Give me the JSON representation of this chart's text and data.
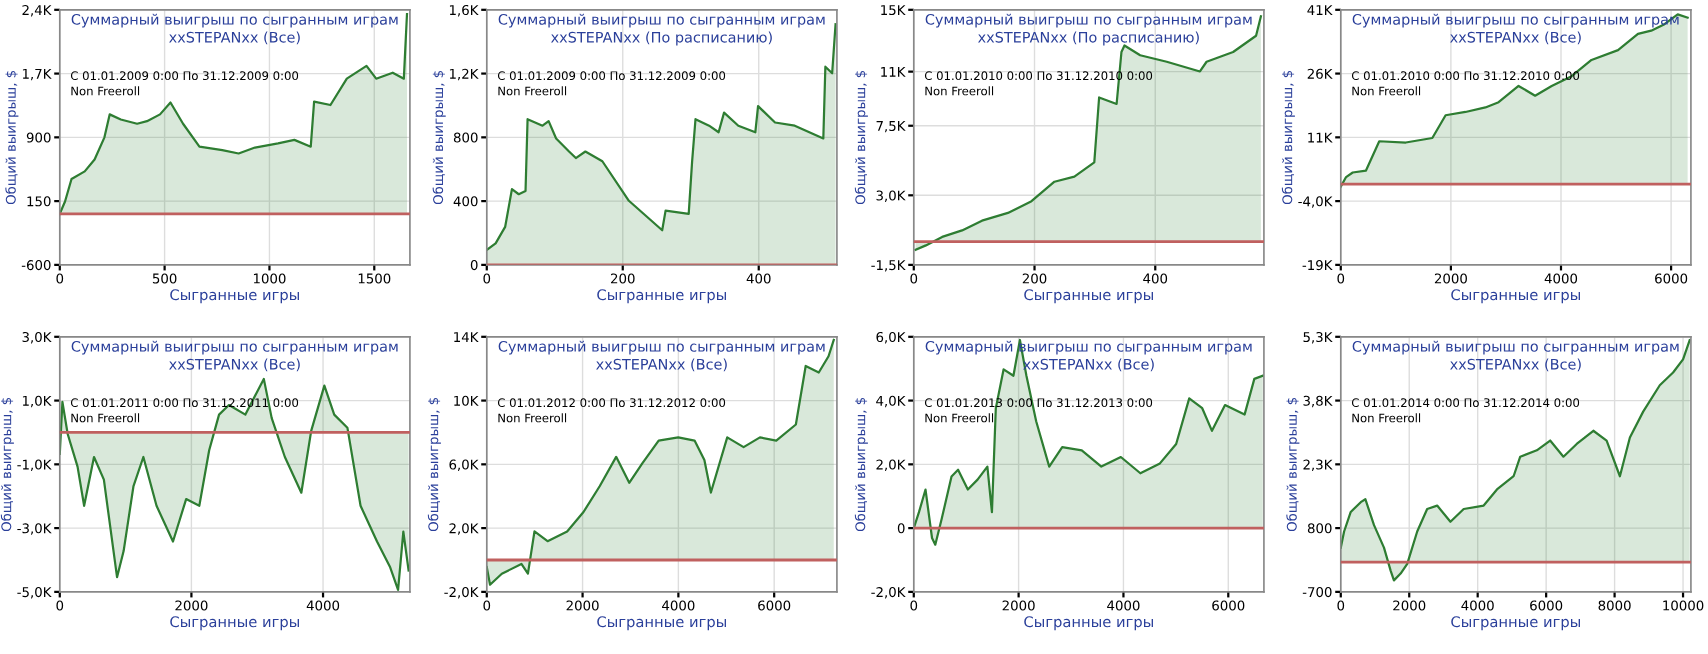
{
  "chart_data": [
    {
      "type": "area",
      "title": "Суммарный выигрыш по сыгранным играм",
      "subtitle": "xxSTEPANxx (Все)",
      "annotations": [
        "С 01.01.2009 0:00 По 31.12.2009 0:00",
        "Non Freeroll"
      ],
      "xlabel": "Сыгранные игры",
      "ylabel": "Общий выигрыш, $",
      "grid": true,
      "xlim": [
        0,
        1670
      ],
      "xticks": [
        0,
        500,
        1000,
        1500
      ],
      "ylim": [
        -600,
        2400
      ],
      "yticks": [
        -600,
        150,
        900,
        {
          "value": 1650,
          "label": "1,7K"
        },
        {
          "value": 2400,
          "label": "2,4K"
        }
      ],
      "ref_lines": [
        {
          "axis": "y",
          "value": 0,
          "color": "#c0605f"
        }
      ],
      "series": [
        {
          "color": "#2e7d32",
          "x": [
            0,
            25,
            56,
            119,
            166,
            213,
            238,
            291,
            369,
            416,
            478,
            528,
            588,
            666,
            775,
            853,
            931,
            1041,
            1119,
            1197,
            1213,
            1291,
            1369,
            1463,
            1509,
            1588,
            1641,
            1656
          ],
          "values": [
            0,
            145,
            410,
            500,
            640,
            900,
            1170,
            1110,
            1060,
            1090,
            1170,
            1310,
            1060,
            790,
            750,
            710,
            780,
            830,
            870,
            790,
            1320,
            1280,
            1590,
            1740,
            1590,
            1660,
            1590,
            2350
          ]
        }
      ]
    },
    {
      "type": "area",
      "title": "Суммарный выигрыш по сыгранным играм",
      "subtitle": "xxSTEPANxx (По расписанию)",
      "annotations": [
        "С 01.01.2009 0:00 По 31.12.2009 0:00",
        "Non Freeroll"
      ],
      "xlabel": "Сыгранные игры",
      "ylabel": "Общий выигрыш, $",
      "grid": true,
      "xlim": [
        0,
        515
      ],
      "xticks": [
        0,
        200,
        400
      ],
      "ylim": [
        0,
        1600
      ],
      "yticks": [
        0,
        400,
        800,
        {
          "value": 1200,
          "label": "1,2K"
        },
        {
          "value": 1600,
          "label": "1,6K"
        }
      ],
      "ref_lines": [
        {
          "axis": "y",
          "value": 0,
          "color": "#c0605f"
        }
      ],
      "series": [
        {
          "color": "#2e7d32",
          "x": [
            0,
            13,
            27,
            37,
            47,
            57,
            60,
            82,
            91,
            102,
            121,
            131,
            145,
            170,
            209,
            258,
            263,
            297,
            302,
            307,
            327,
            341,
            349,
            370,
            395,
            399,
            424,
            453,
            495,
            498,
            508,
            513
          ],
          "values": [
            94,
            135,
            238,
            475,
            443,
            463,
            914,
            873,
            902,
            793,
            711,
            670,
            711,
            650,
            402,
            217,
            340,
            320,
            648,
            914,
            873,
            832,
            955,
            873,
            832,
            996,
            893,
            873,
            793,
            1243,
            1202,
            1510
          ]
        }
      ]
    },
    {
      "type": "area",
      "title": "Суммарный выигрыш по сыгранным играм",
      "subtitle": "xxSTEPANxx (По расписанию)",
      "annotations": [
        "С 01.01.2010 0:00 По 31.12.2010 0:00",
        "Non Freeroll"
      ],
      "xlabel": "Сыгранные игры",
      "ylabel": "Общий выигрыш, $",
      "grid": true,
      "xlim": [
        0,
        580
      ],
      "xticks": [
        0,
        200,
        400
      ],
      "ylim": [
        -1500,
        15000
      ],
      "yticks": [
        {
          "value": -1500,
          "label": "-1,5K"
        },
        {
          "value": 3000,
          "label": "3,0K"
        },
        {
          "value": 7500,
          "label": "7,5K"
        },
        {
          "value": 11000,
          "label": "11K"
        },
        {
          "value": 15000,
          "label": "15K"
        }
      ],
      "ref_lines": [
        {
          "axis": "y",
          "value": 0,
          "color": "#c0605f"
        }
      ],
      "series": [
        {
          "color": "#2e7d32",
          "x": [
            3,
            20,
            47,
            80,
            113,
            156,
            195,
            233,
            266,
            299,
            307,
            336,
            344,
            349,
            375,
            419,
            474,
            485,
            529,
            567,
            575
          ],
          "values": [
            -530,
            -240,
            310,
            730,
            1360,
            1860,
            2620,
            3880,
            4210,
            5130,
            9330,
            8910,
            12270,
            12690,
            12060,
            11640,
            11010,
            11640,
            12270,
            13320,
            14580
          ]
        }
      ]
    },
    {
      "type": "area",
      "title": "Суммарный выигрыш по сыгранным играм",
      "subtitle": "xxSTEPANxx (Все)",
      "annotations": [
        "С 01.01.2010 0:00 По 31.12.2010 0:00",
        "Non Freeroll"
      ],
      "xlabel": "Сыгранные игры",
      "ylabel": "Общий выигрыш, $",
      "grid": true,
      "xlim": [
        0,
        6360
      ],
      "xticks": [
        0,
        2000,
        4000,
        6000
      ],
      "ylim": [
        -19000,
        41000
      ],
      "yticks": [
        {
          "value": -19000,
          "label": "-19K"
        },
        {
          "value": -4000,
          "label": "-4,0K"
        },
        {
          "value": 11000,
          "label": "11K"
        },
        {
          "value": 26000,
          "label": "26K"
        },
        {
          "value": 41000,
          "label": "41K"
        }
      ],
      "ref_lines": [
        {
          "axis": "y",
          "value": 0,
          "color": "#c0605f"
        }
      ],
      "series": [
        {
          "color": "#2e7d32",
          "x": [
            0,
            96,
            217,
            458,
            699,
            1181,
            1663,
            1904,
            2265,
            2627,
            2867,
            3229,
            3530,
            3831,
            4193,
            4554,
            5036,
            5398,
            5639,
            5880,
            6120,
            6300
          ],
          "values": [
            -600,
            1660,
            2730,
            3190,
            10080,
            9780,
            10850,
            16200,
            16970,
            18040,
            19270,
            23090,
            20800,
            23090,
            25390,
            29210,
            31510,
            35340,
            36100,
            37630,
            39930,
            39160
          ]
        }
      ]
    },
    {
      "type": "area",
      "title": "Суммарный выигрыш по сыгранным играм",
      "subtitle": "xxSTEPANxx (Все)",
      "annotations": [
        "С 01.01.2011 0:00 По 31.12.2011 0:00",
        "Non Freeroll"
      ],
      "xlabel": "Сыгранные игры",
      "ylabel": "Общий выигрыш, $",
      "grid": true,
      "xlim": [
        0,
        5320
      ],
      "xticks": [
        0,
        2000,
        4000
      ],
      "ylim": [
        -5000,
        3000
      ],
      "yticks": [
        {
          "value": -5000,
          "label": "-5,0K"
        },
        {
          "value": -3000,
          "label": "-3,0K"
        },
        {
          "value": -1000,
          "label": "-1,0K"
        },
        {
          "value": 1000,
          "label": "1,0K"
        },
        {
          "value": 3000,
          "label": "3,0K"
        }
      ],
      "ref_lines": [
        {
          "axis": "y",
          "value": 0,
          "color": "#c0605f"
        }
      ],
      "series": [
        {
          "color": "#2e7d32",
          "x": [
            0,
            40,
            120,
            270,
            370,
            520,
            670,
            870,
            970,
            1120,
            1270,
            1470,
            1720,
            1920,
            2120,
            2270,
            2420,
            2570,
            2820,
            3100,
            3220,
            3420,
            3670,
            3820,
            4020,
            4170,
            4370,
            4570,
            4820,
            5020,
            5140,
            5220,
            5300
          ],
          "values": [
            -670,
            960,
            -50,
            -1070,
            -2300,
            -770,
            -1480,
            -4540,
            -3720,
            -1680,
            -770,
            -2300,
            -3420,
            -2090,
            -2300,
            -560,
            560,
            860,
            560,
            1680,
            450,
            -770,
            -1890,
            50,
            1470,
            560,
            150,
            -2300,
            -3420,
            -4230,
            -4940,
            -3110,
            -4330
          ]
        }
      ]
    },
    {
      "type": "area",
      "title": "Суммарный выигрыш по сыгранным играм",
      "subtitle": "xxSTEPANxx (Все)",
      "annotations": [
        "С 01.01.2012 0:00 По 31.12.2012 0:00",
        "Non Freeroll"
      ],
      "xlabel": "Сыгранные игры",
      "ylabel": "Общий выигрыш, $",
      "grid": true,
      "xlim": [
        0,
        7310
      ],
      "xticks": [
        0,
        2000,
        4000,
        6000
      ],
      "ylim": [
        -2000,
        14000
      ],
      "yticks": [
        {
          "value": -2000,
          "label": "-2,0K"
        },
        {
          "value": 2000,
          "label": "2,0K"
        },
        {
          "value": 6000,
          "label": "6,0K"
        },
        {
          "value": 10000,
          "label": "10K"
        },
        {
          "value": 14000,
          "label": "14K"
        }
      ],
      "ref_lines": [
        {
          "axis": "y",
          "value": 0,
          "color": "#c0605f"
        }
      ],
      "series": [
        {
          "color": "#2e7d32",
          "x": [
            0,
            68,
            314,
            723,
            859,
            996,
            1269,
            1678,
            2019,
            2360,
            2701,
            2974,
            3247,
            3588,
            3997,
            4338,
            4543,
            4679,
            5020,
            5362,
            5703,
            6044,
            6453,
            6658,
            6931,
            7135,
            7244
          ],
          "values": [
            -450,
            -1550,
            -860,
            -250,
            -860,
            1790,
            1180,
            1790,
            3010,
            4640,
            6470,
            4840,
            6060,
            7490,
            7690,
            7490,
            6270,
            4230,
            7690,
            7080,
            7690,
            7490,
            8500,
            12170,
            11760,
            12780,
            13800
          ]
        }
      ]
    },
    {
      "type": "area",
      "title": "Суммарный выигрыш по сыгранным играм",
      "subtitle": "xxSTEPANxx (Все)",
      "annotations": [
        "С 01.01.2013 0:00 По 31.12.2013 0:00",
        "Non Freeroll"
      ],
      "xlabel": "Сыгранные игры",
      "ylabel": "Общий выигрыш, $",
      "grid": true,
      "xlim": [
        0,
        6680
      ],
      "xticks": [
        0,
        2000,
        4000,
        6000
      ],
      "ylim": [
        -2000,
        6000
      ],
      "yticks": [
        {
          "value": -2000,
          "label": "-2,0K"
        },
        0,
        {
          "value": 2000,
          "label": "2,0K"
        },
        {
          "value": 4000,
          "label": "4,0K"
        },
        {
          "value": 6000,
          "label": "6,0K"
        }
      ],
      "ref_lines": [
        {
          "axis": "y",
          "value": 0,
          "color": "#c0605f"
        }
      ],
      "series": [
        {
          "color": "#2e7d32",
          "x": [
            0,
            99,
            224,
            348,
            410,
            534,
            720,
            845,
            1031,
            1217,
            1404,
            1491,
            1565,
            1714,
            1901,
            2025,
            2149,
            2335,
            2584,
            2832,
            3205,
            3578,
            3950,
            4323,
            4696,
            5006,
            5255,
            5503,
            5689,
            5938,
            6311,
            6497,
            6658
          ],
          "values": [
            0,
            500,
            1210,
            -310,
            -520,
            300,
            1620,
            1830,
            1210,
            1520,
            1930,
            500,
            3760,
            4980,
            4780,
            5900,
            4780,
            3350,
            1930,
            2540,
            2440,
            1930,
            2230,
            1720,
            2030,
            2640,
            4070,
            3760,
            3050,
            3860,
            3560,
            4680,
            4780
          ]
        }
      ]
    },
    {
      "type": "area",
      "title": "Суммарный выигрыш по сыгранным играм",
      "subtitle": "xxSTEPANxx (Все)",
      "annotations": [
        "С 01.01.2014 0:00 По 31.12.2014 0:00",
        "Non Freeroll"
      ],
      "xlabel": "Сыгранные игры",
      "ylabel": "Общий выигрыш, $",
      "grid": true,
      "xlim": [
        0,
        10230
      ],
      "xticks": [
        0,
        2000,
        4000,
        6000,
        8000,
        10000
      ],
      "ylim": [
        -700,
        5300
      ],
      "yticks": [
        -700,
        800,
        {
          "value": 2300,
          "label": "2,3K"
        },
        {
          "value": 3800,
          "label": "3,8K"
        },
        {
          "value": 5300,
          "label": "5,3K"
        }
      ],
      "ref_lines": [
        {
          "axis": "y",
          "value": 0,
          "color": "#c0605f"
        }
      ],
      "series": [
        {
          "color": "#2e7d32",
          "x": [
            0,
            97,
            291,
            583,
            718,
            971,
            1262,
            1456,
            1553,
            1748,
            1942,
            2233,
            2524,
            2816,
            3204,
            3592,
            4175,
            4563,
            5049,
            5243,
            5728,
            6117,
            6505,
            6893,
            7379,
            7767,
            8155,
            8447,
            8835,
            9320,
            9709,
            10000,
            10194
          ],
          "values": [
            340,
            720,
            1180,
            1410,
            1480,
            870,
            340,
            -200,
            -430,
            -270,
            -40,
            720,
            1250,
            1330,
            950,
            1250,
            1330,
            1710,
            2020,
            2480,
            2630,
            2860,
            2480,
            2780,
            3090,
            2860,
            2020,
            2930,
            3540,
            4160,
            4460,
            4770,
            5220
          ]
        }
      ]
    }
  ]
}
